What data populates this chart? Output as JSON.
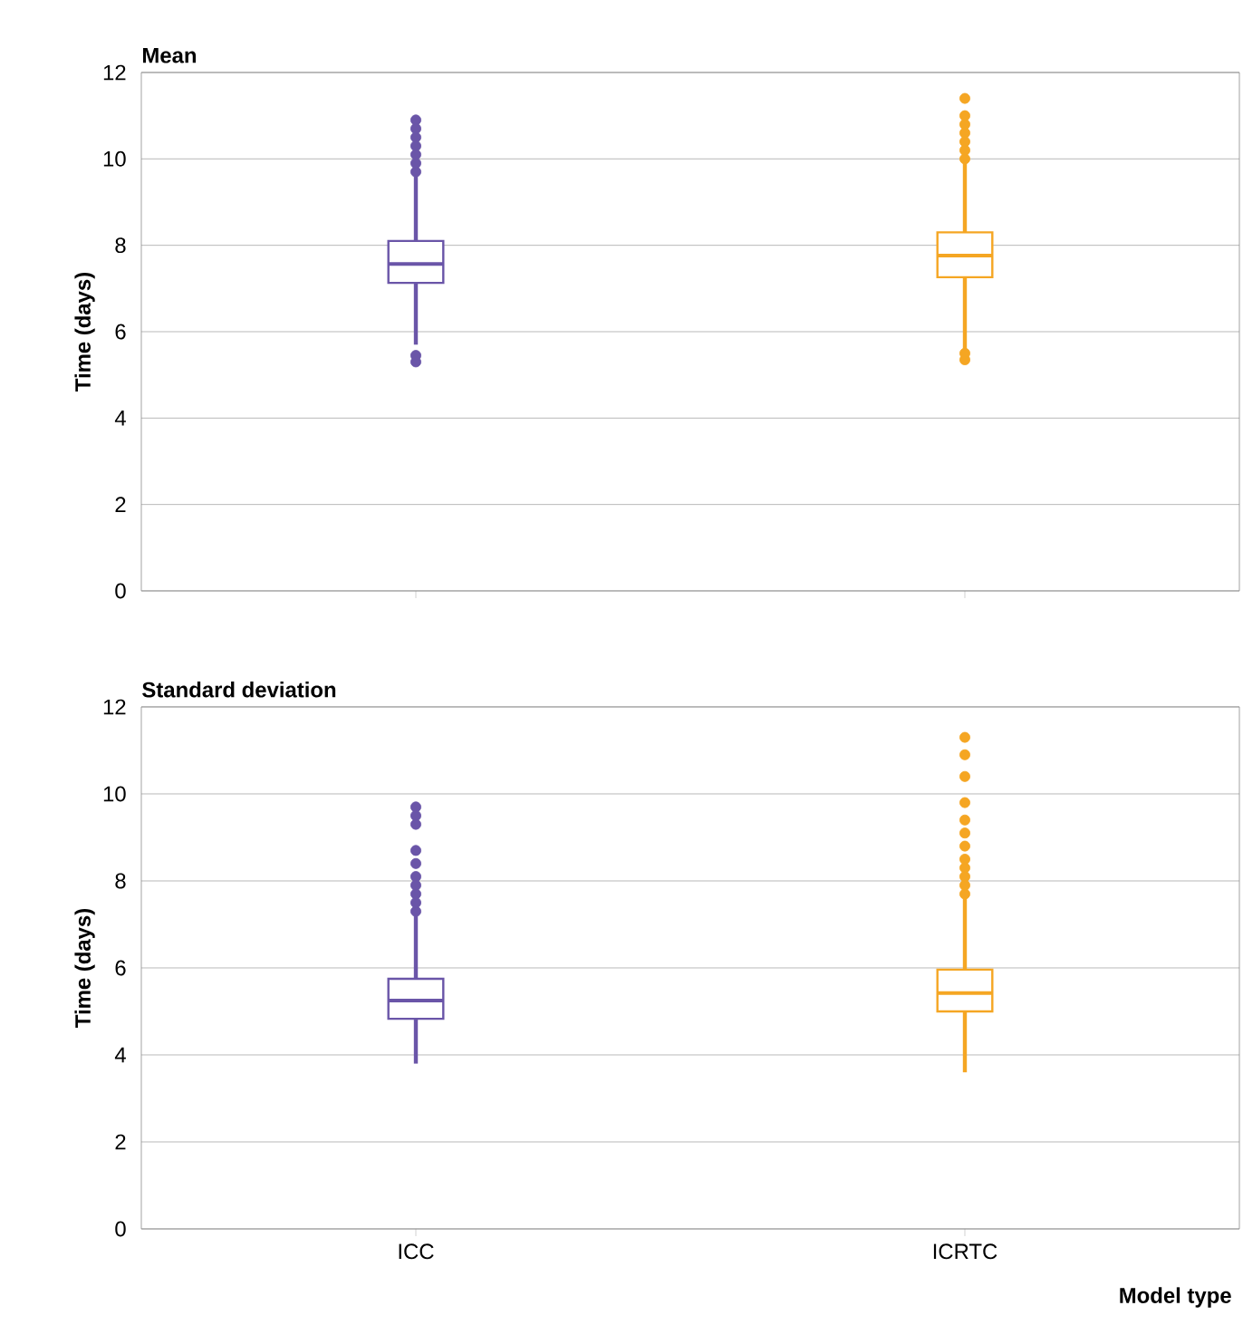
{
  "chart_data": [
    {
      "type": "box",
      "title": "Mean",
      "ylabel": "Time (days)",
      "categories": [
        null,
        null
      ],
      "colors": [
        "#6a55a8",
        "#f5a623"
      ],
      "ylim": [
        0,
        12
      ],
      "yticks": [
        0,
        2,
        4,
        6,
        8,
        10,
        12
      ],
      "grid": "y",
      "tick_labels": "y",
      "boxes": [
        {
          "low": 5.7,
          "q1": 7.13,
          "median": 7.57,
          "q3": 8.1,
          "high": 9.6,
          "outliers": [
            5.3,
            5.45,
            9.7,
            9.9,
            10.1,
            10.3,
            10.5,
            10.7,
            10.9
          ]
        },
        {
          "low": 5.6,
          "q1": 7.26,
          "median": 7.76,
          "q3": 8.3,
          "high": 9.9,
          "outliers": [
            5.35,
            5.5,
            10.0,
            10.2,
            10.4,
            10.6,
            10.8,
            11.0,
            11.4
          ]
        }
      ]
    },
    {
      "type": "box",
      "title": "Standard deviation",
      "xlabel": "Model type",
      "ylabel": "Time (days)",
      "categories": [
        "ICC",
        "ICRTC"
      ],
      "colors": [
        "#6a55a8",
        "#f5a623"
      ],
      "ylim": [
        0,
        12
      ],
      "yticks": [
        0,
        2,
        4,
        6,
        8,
        10,
        12
      ],
      "grid": "y",
      "boxes": [
        {
          "low": 3.8,
          "q1": 4.83,
          "median": 5.25,
          "q3": 5.75,
          "high": 7.2,
          "outliers": [
            7.3,
            7.5,
            7.7,
            7.9,
            8.1,
            8.4,
            8.7,
            9.3,
            9.5,
            9.7
          ]
        },
        {
          "low": 3.6,
          "q1": 5.0,
          "median": 5.42,
          "q3": 5.96,
          "high": 7.6,
          "outliers": [
            7.7,
            7.9,
            8.1,
            8.3,
            8.5,
            8.8,
            9.1,
            9.4,
            9.8,
            10.4,
            10.9,
            11.3
          ]
        }
      ]
    }
  ]
}
